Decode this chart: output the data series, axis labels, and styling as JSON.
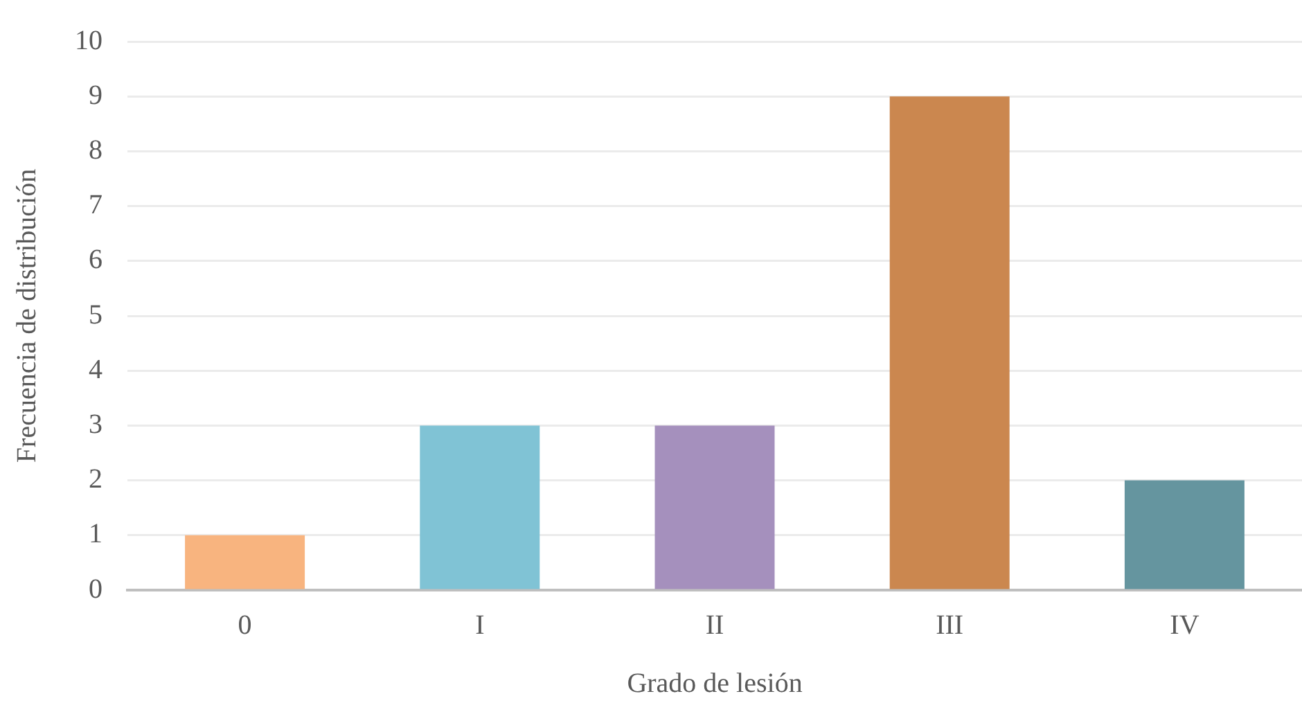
{
  "chart_data": {
    "type": "bar",
    "xlabel": "Grado de lesión",
    "ylabel": "Frecuencia de distribución",
    "categories": [
      "0",
      "I",
      "II",
      "III",
      "IV"
    ],
    "values": [
      1,
      3,
      3,
      9,
      2
    ],
    "colors": [
      "#f8b47f",
      "#80c3d5",
      "#a590bd",
      "#cb874f",
      "#65959f"
    ],
    "ylim": [
      0,
      10
    ],
    "yticks": [
      0,
      1,
      2,
      3,
      4,
      5,
      6,
      7,
      8,
      9,
      10
    ],
    "grid": "y",
    "legend": false
  }
}
